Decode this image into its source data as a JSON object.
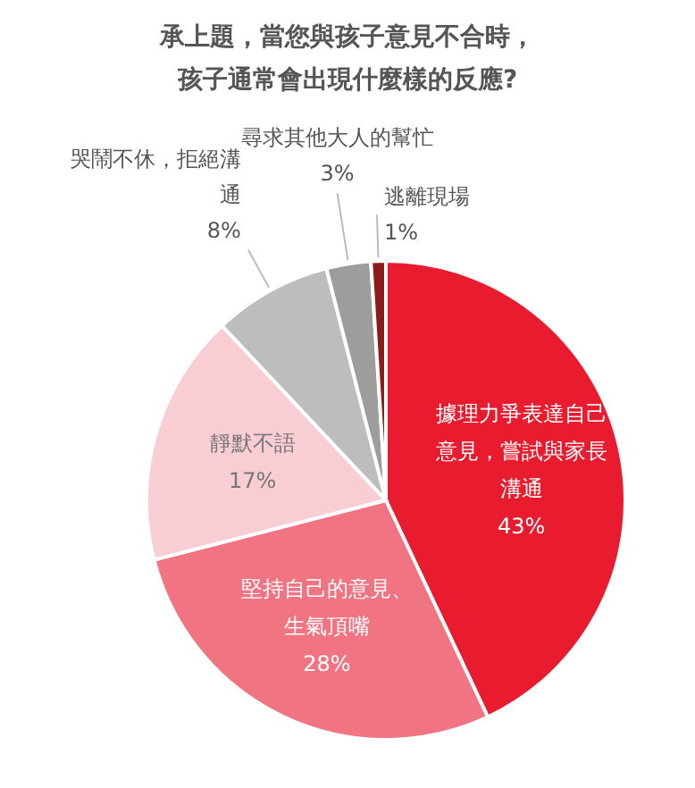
{
  "chart_data": {
    "type": "pie",
    "title": [
      "承上題，當您與孩子意見不合時，",
      "孩子通常會出現什麼樣的反應?"
    ],
    "categories": [
      "據理力爭表達自己意見，嘗試與家長溝通",
      "堅持自己的意見、生氣頂嘴",
      "靜默不語",
      "哭鬧不休，拒絕溝通",
      "尋求其他大人的幫忙",
      "逃離現場"
    ],
    "values": [
      43,
      28,
      17,
      8,
      3,
      1
    ],
    "value_labels": [
      "43%",
      "28%",
      "17%",
      "8%",
      "3%",
      "1%"
    ],
    "colors": [
      "#e81c2e",
      "#f07482",
      "#f8cdd3",
      "#bdbdbd",
      "#9d9d9b",
      "#8c1b1b"
    ]
  }
}
